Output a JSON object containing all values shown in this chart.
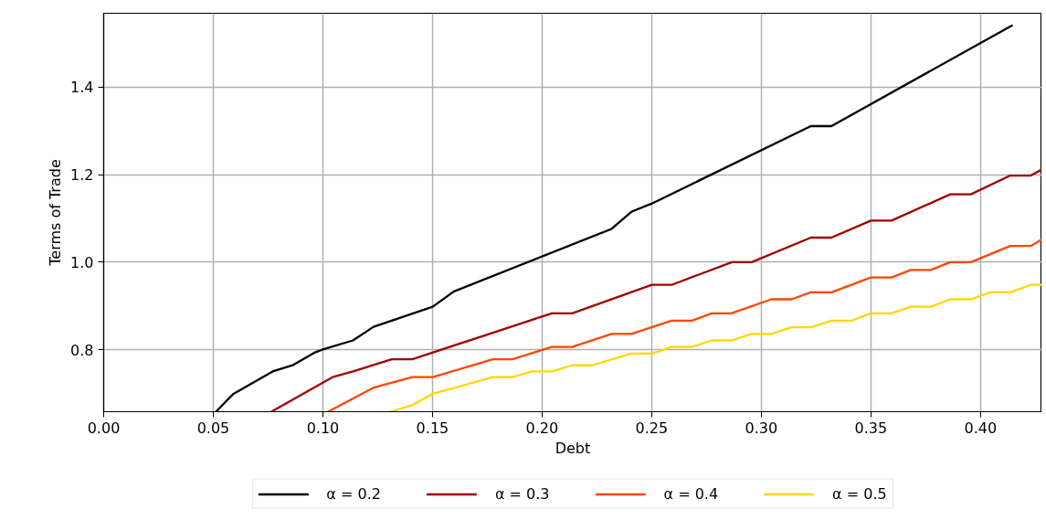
{
  "chart_data": {
    "type": "line",
    "xlabel": "Debt",
    "ylabel": "Terms of Trade",
    "xlim": [
      0,
      0.428
    ],
    "ylim": [
      0.658,
      1.569
    ],
    "xticks": [
      {
        "value": 0,
        "label": "0.00"
      },
      {
        "value": 0.05,
        "label": "0.05"
      },
      {
        "value": 0.1,
        "label": "0.10"
      },
      {
        "value": 0.15,
        "label": "0.15"
      },
      {
        "value": 0.2,
        "label": "0.20"
      },
      {
        "value": 0.25,
        "label": "0.25"
      },
      {
        "value": 0.3,
        "label": "0.30"
      },
      {
        "value": 0.35,
        "label": "0.35"
      },
      {
        "value": 0.4,
        "label": "0.40"
      }
    ],
    "yticks": [
      {
        "value": 0.8,
        "label": "0.8"
      },
      {
        "value": 1.0,
        "label": "1.0"
      },
      {
        "value": 1.2,
        "label": "1.2"
      },
      {
        "value": 1.4,
        "label": "1.4"
      }
    ],
    "grid": true,
    "legend": "bottom",
    "line_style": "solid",
    "series": [
      {
        "name": "α = 0.2",
        "color": "#000000",
        "x": [
          0.0512,
          0.0592,
          0.0771,
          0.0865,
          0.0961,
          0.1003,
          0.1137,
          0.1231,
          0.1314,
          0.1501,
          0.1598,
          0.2317,
          0.2407,
          0.2501,
          0.3226,
          0.332,
          0.4143
        ],
        "values": [
          0.658,
          0.699,
          0.75,
          0.765,
          0.793,
          0.801,
          0.821,
          0.852,
          0.866,
          0.898,
          0.933,
          1.076,
          1.115,
          1.134,
          1.311,
          1.311,
          1.541
        ]
      },
      {
        "name": "α = 0.3",
        "color": "#a00000",
        "x": [
          0.0765,
          0.1044,
          0.1138,
          0.1314,
          0.1408,
          0.2044,
          0.2137,
          0.2501,
          0.2591,
          0.2866,
          0.2956,
          0.3226,
          0.332,
          0.35,
          0.3594,
          0.3862,
          0.3956,
          0.4136,
          0.423,
          0.428
        ],
        "values": [
          0.658,
          0.737,
          0.75,
          0.778,
          0.778,
          0.883,
          0.883,
          0.948,
          0.948,
          1.0,
          1.0,
          1.056,
          1.056,
          1.095,
          1.095,
          1.155,
          1.155,
          1.198,
          1.198,
          1.212
        ]
      },
      {
        "name": "α = 0.4",
        "color": "#ff4500",
        "x": [
          0.1024,
          0.1231,
          0.1408,
          0.1501,
          0.1775,
          0.1865,
          0.2044,
          0.2137,
          0.2317,
          0.2407,
          0.2591,
          0.2683,
          0.2774,
          0.2863,
          0.3046,
          0.3137,
          0.3226,
          0.332,
          0.35,
          0.3594,
          0.3682,
          0.3773,
          0.3862,
          0.3956,
          0.4136,
          0.423,
          0.428
        ],
        "values": [
          0.658,
          0.713,
          0.737,
          0.737,
          0.778,
          0.778,
          0.806,
          0.806,
          0.836,
          0.836,
          0.866,
          0.866,
          0.883,
          0.883,
          0.915,
          0.915,
          0.931,
          0.931,
          0.965,
          0.965,
          0.982,
          0.982,
          1.0,
          1.0,
          1.037,
          1.037,
          1.052
        ]
      },
      {
        "name": "α = 0.5",
        "color": "#ffd700",
        "x": [
          0.1307,
          0.1408,
          0.1501,
          0.1775,
          0.1865,
          0.1954,
          0.2044,
          0.2137,
          0.2227,
          0.2407,
          0.2501,
          0.2591,
          0.2683,
          0.2774,
          0.2863,
          0.2956,
          0.3046,
          0.3137,
          0.3226,
          0.332,
          0.341,
          0.35,
          0.3594,
          0.3682,
          0.3773,
          0.3862,
          0.3956,
          0.4045,
          0.4136,
          0.423,
          0.428
        ],
        "values": [
          0.658,
          0.673,
          0.699,
          0.737,
          0.737,
          0.75,
          0.75,
          0.764,
          0.764,
          0.791,
          0.791,
          0.806,
          0.806,
          0.821,
          0.821,
          0.836,
          0.836,
          0.851,
          0.851,
          0.866,
          0.866,
          0.883,
          0.883,
          0.898,
          0.898,
          0.915,
          0.915,
          0.931,
          0.931,
          0.948,
          0.948
        ]
      }
    ]
  }
}
